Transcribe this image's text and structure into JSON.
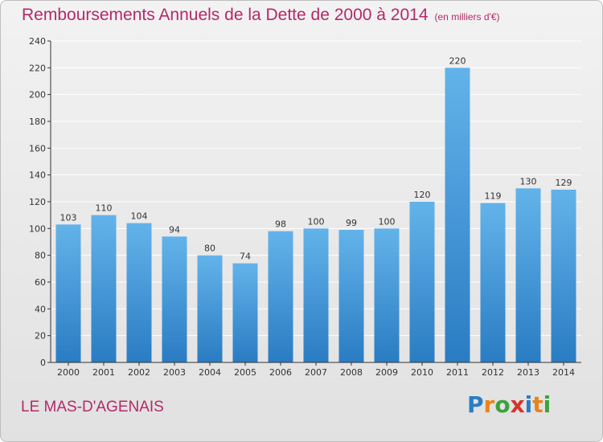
{
  "header": {
    "title": "Remboursements Annuels de la Dette de 2000 à 2014",
    "subtitle": "(en milliers d'€)"
  },
  "footer": {
    "town": "LE MAS-D'AGENAIS",
    "logo": {
      "text": "Proxiti",
      "letters": [
        "P",
        "r",
        "o",
        "x",
        "i",
        "t",
        "i"
      ],
      "colors": [
        "#2a7cc7",
        "#e8841a",
        "#3aa339",
        "#d8322a",
        "#2a7cc7",
        "#e8841a",
        "#3aa339"
      ]
    }
  },
  "colors": {
    "bar_light": "#63b3ea",
    "bar_dark": "#2a7cc3",
    "title": "#b4296a",
    "grid": "#ffffff",
    "axis": "#333333"
  },
  "chart_data": {
    "type": "bar",
    "title": "Remboursements Annuels de la Dette de 2000 à 2014",
    "subtitle": "(en milliers d'€)",
    "categories": [
      "2000",
      "2001",
      "2002",
      "2003",
      "2004",
      "2005",
      "2006",
      "2007",
      "2008",
      "2009",
      "2010",
      "2011",
      "2012",
      "2013",
      "2014"
    ],
    "values": [
      103,
      110,
      104,
      94,
      80,
      74,
      98,
      100,
      99,
      100,
      120,
      220,
      119,
      130,
      129
    ],
    "ylim": [
      0,
      240
    ],
    "yticks": [
      0,
      20,
      40,
      60,
      80,
      100,
      120,
      140,
      160,
      180,
      200,
      220,
      240
    ],
    "grid": true,
    "legend": "none",
    "xlabel": "",
    "ylabel": ""
  }
}
